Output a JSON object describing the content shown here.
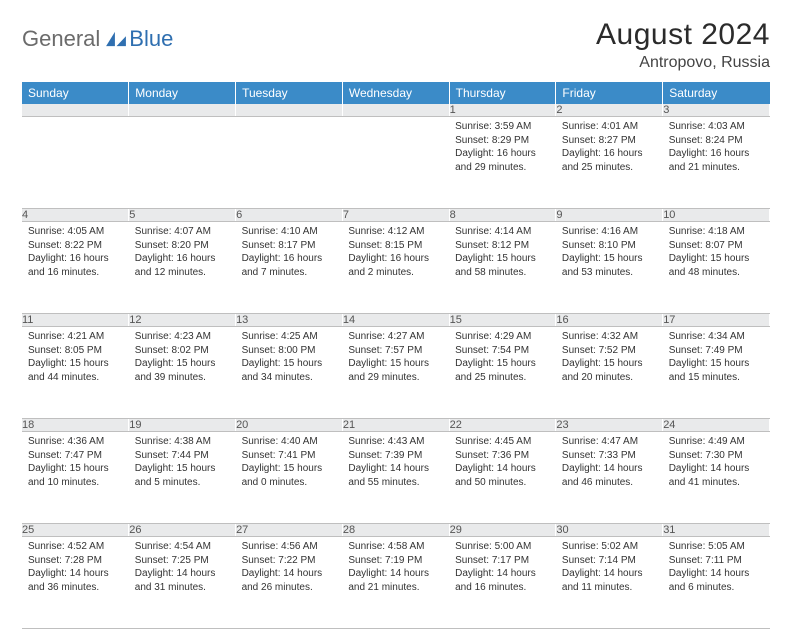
{
  "brand": {
    "part1": "General",
    "part2": "Blue"
  },
  "title": "August 2024",
  "location": "Antropovo, Russia",
  "colors": {
    "header_bg": "#3b8bc8",
    "header_fg": "#ffffff",
    "daynum_bg": "#e9eaeb",
    "border": "#bfbfbf",
    "brand_gray": "#6b6b6b",
    "brand_blue": "#2f6fb0"
  },
  "weekdays": [
    "Sunday",
    "Monday",
    "Tuesday",
    "Wednesday",
    "Thursday",
    "Friday",
    "Saturday"
  ],
  "weeks": [
    [
      null,
      null,
      null,
      null,
      {
        "n": "1",
        "sr": "3:59 AM",
        "ss": "8:29 PM",
        "dl": "16 hours and 29 minutes."
      },
      {
        "n": "2",
        "sr": "4:01 AM",
        "ss": "8:27 PM",
        "dl": "16 hours and 25 minutes."
      },
      {
        "n": "3",
        "sr": "4:03 AM",
        "ss": "8:24 PM",
        "dl": "16 hours and 21 minutes."
      }
    ],
    [
      {
        "n": "4",
        "sr": "4:05 AM",
        "ss": "8:22 PM",
        "dl": "16 hours and 16 minutes."
      },
      {
        "n": "5",
        "sr": "4:07 AM",
        "ss": "8:20 PM",
        "dl": "16 hours and 12 minutes."
      },
      {
        "n": "6",
        "sr": "4:10 AM",
        "ss": "8:17 PM",
        "dl": "16 hours and 7 minutes."
      },
      {
        "n": "7",
        "sr": "4:12 AM",
        "ss": "8:15 PM",
        "dl": "16 hours and 2 minutes."
      },
      {
        "n": "8",
        "sr": "4:14 AM",
        "ss": "8:12 PM",
        "dl": "15 hours and 58 minutes."
      },
      {
        "n": "9",
        "sr": "4:16 AM",
        "ss": "8:10 PM",
        "dl": "15 hours and 53 minutes."
      },
      {
        "n": "10",
        "sr": "4:18 AM",
        "ss": "8:07 PM",
        "dl": "15 hours and 48 minutes."
      }
    ],
    [
      {
        "n": "11",
        "sr": "4:21 AM",
        "ss": "8:05 PM",
        "dl": "15 hours and 44 minutes."
      },
      {
        "n": "12",
        "sr": "4:23 AM",
        "ss": "8:02 PM",
        "dl": "15 hours and 39 minutes."
      },
      {
        "n": "13",
        "sr": "4:25 AM",
        "ss": "8:00 PM",
        "dl": "15 hours and 34 minutes."
      },
      {
        "n": "14",
        "sr": "4:27 AM",
        "ss": "7:57 PM",
        "dl": "15 hours and 29 minutes."
      },
      {
        "n": "15",
        "sr": "4:29 AM",
        "ss": "7:54 PM",
        "dl": "15 hours and 25 minutes."
      },
      {
        "n": "16",
        "sr": "4:32 AM",
        "ss": "7:52 PM",
        "dl": "15 hours and 20 minutes."
      },
      {
        "n": "17",
        "sr": "4:34 AM",
        "ss": "7:49 PM",
        "dl": "15 hours and 15 minutes."
      }
    ],
    [
      {
        "n": "18",
        "sr": "4:36 AM",
        "ss": "7:47 PM",
        "dl": "15 hours and 10 minutes."
      },
      {
        "n": "19",
        "sr": "4:38 AM",
        "ss": "7:44 PM",
        "dl": "15 hours and 5 minutes."
      },
      {
        "n": "20",
        "sr": "4:40 AM",
        "ss": "7:41 PM",
        "dl": "15 hours and 0 minutes."
      },
      {
        "n": "21",
        "sr": "4:43 AM",
        "ss": "7:39 PM",
        "dl": "14 hours and 55 minutes."
      },
      {
        "n": "22",
        "sr": "4:45 AM",
        "ss": "7:36 PM",
        "dl": "14 hours and 50 minutes."
      },
      {
        "n": "23",
        "sr": "4:47 AM",
        "ss": "7:33 PM",
        "dl": "14 hours and 46 minutes."
      },
      {
        "n": "24",
        "sr": "4:49 AM",
        "ss": "7:30 PM",
        "dl": "14 hours and 41 minutes."
      }
    ],
    [
      {
        "n": "25",
        "sr": "4:52 AM",
        "ss": "7:28 PM",
        "dl": "14 hours and 36 minutes."
      },
      {
        "n": "26",
        "sr": "4:54 AM",
        "ss": "7:25 PM",
        "dl": "14 hours and 31 minutes."
      },
      {
        "n": "27",
        "sr": "4:56 AM",
        "ss": "7:22 PM",
        "dl": "14 hours and 26 minutes."
      },
      {
        "n": "28",
        "sr": "4:58 AM",
        "ss": "7:19 PM",
        "dl": "14 hours and 21 minutes."
      },
      {
        "n": "29",
        "sr": "5:00 AM",
        "ss": "7:17 PM",
        "dl": "14 hours and 16 minutes."
      },
      {
        "n": "30",
        "sr": "5:02 AM",
        "ss": "7:14 PM",
        "dl": "14 hours and 11 minutes."
      },
      {
        "n": "31",
        "sr": "5:05 AM",
        "ss": "7:11 PM",
        "dl": "14 hours and 6 minutes."
      }
    ]
  ],
  "labels": {
    "sunrise": "Sunrise:",
    "sunset": "Sunset:",
    "daylight": "Daylight:"
  }
}
